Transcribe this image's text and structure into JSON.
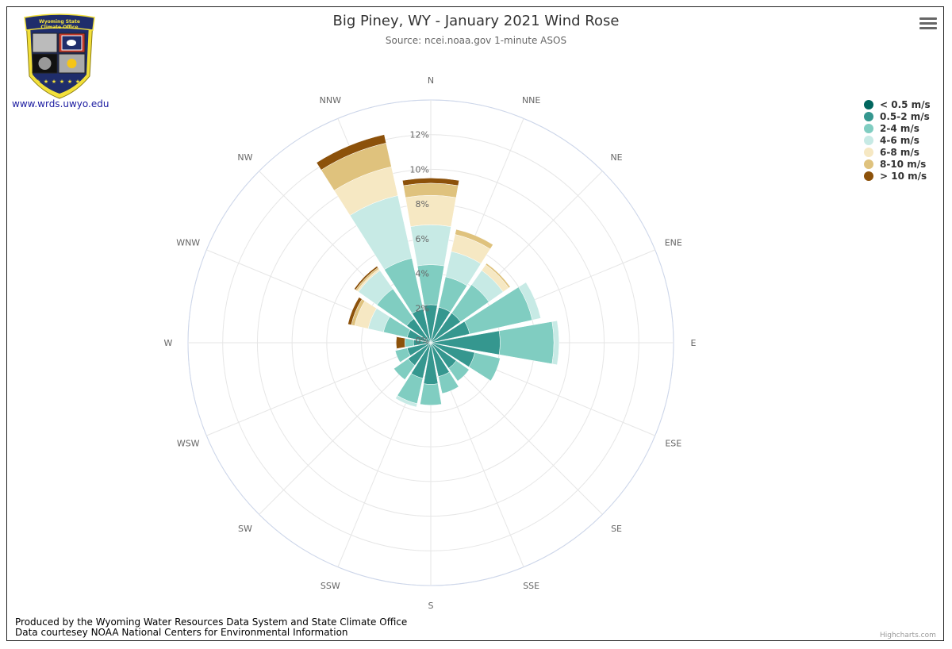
{
  "header": {
    "title": "Big Piney, WY - January 2021 Wind Rose",
    "subtitle": "Source: ncei.noaa.gov 1-minute ASOS"
  },
  "logo": {
    "banner_line1": "Wyoming State",
    "banner_line2": "Climate Office",
    "link_text": "www.wrds.uwyo.edu"
  },
  "footer": {
    "line1": "Produced by the Wyoming Water Resources Data System and State Climate Office",
    "line2": "Data courtesey NOAA National Centers for Environmental Information",
    "credits": "Highcharts.com"
  },
  "menu_icon": "hamburger-menu-icon",
  "chart_data": {
    "type": "bar",
    "polar": true,
    "stacked": true,
    "categories": [
      "N",
      "NNE",
      "NE",
      "ENE",
      "E",
      "ESE",
      "SE",
      "SSE",
      "S",
      "SSW",
      "SW",
      "WSW",
      "W",
      "WNW",
      "NW",
      "NNW"
    ],
    "y_tick_labels": [
      "2%",
      "4%",
      "6%",
      "8%",
      "10%",
      "12%"
    ],
    "ylim": [
      0,
      14
    ],
    "legend_position": "top-right",
    "series": [
      {
        "name": "< 0.5 m/s",
        "color": "#01665e",
        "values": [
          0,
          0,
          0,
          0,
          0,
          0,
          0,
          0,
          0,
          0,
          0,
          0,
          0,
          0,
          0,
          0
        ]
      },
      {
        "name": "0.5-2 m/s",
        "color": "#35978f",
        "values": [
          2.2,
          2.1,
          2.1,
          2.3,
          4.0,
          2.6,
          1.8,
          2.0,
          2.4,
          2.1,
          1.6,
          1.4,
          1.0,
          1.4,
          1.7,
          2.0
        ]
      },
      {
        "name": "2-4 m/s",
        "color": "#80cdc1",
        "values": [
          2.3,
          1.8,
          2.0,
          3.7,
          3.1,
          1.5,
          0.9,
          1.0,
          1.2,
          1.5,
          1.0,
          0.7,
          0.5,
          1.4,
          2.1,
          3.0
        ]
      },
      {
        "name": "4-6 m/s",
        "color": "#c7eae5",
        "values": [
          2.3,
          1.5,
          1.0,
          0.5,
          0.3,
          0,
          0,
          0,
          0,
          0.2,
          0,
          0,
          0,
          0.9,
          1.3,
          3.7
        ]
      },
      {
        "name": "6-8 m/s",
        "color": "#f6e8c3",
        "values": [
          1.7,
          1.0,
          0.4,
          0,
          0,
          0,
          0,
          0,
          0,
          0,
          0,
          0,
          0,
          0.8,
          0.1,
          1.7
        ]
      },
      {
        "name": "8-10 m/s",
        "color": "#dfc27d",
        "values": [
          0.7,
          0.3,
          0.1,
          0,
          0,
          0,
          0,
          0,
          0,
          0,
          0,
          0,
          0,
          0.2,
          0.1,
          1.4
        ]
      },
      {
        "name": "> 10 m/s",
        "color": "#8c510a",
        "values": [
          0.3,
          0,
          0,
          0,
          0,
          0,
          0,
          0,
          0,
          0,
          0,
          0,
          0.5,
          0.2,
          0.1,
          0.5
        ]
      }
    ]
  }
}
